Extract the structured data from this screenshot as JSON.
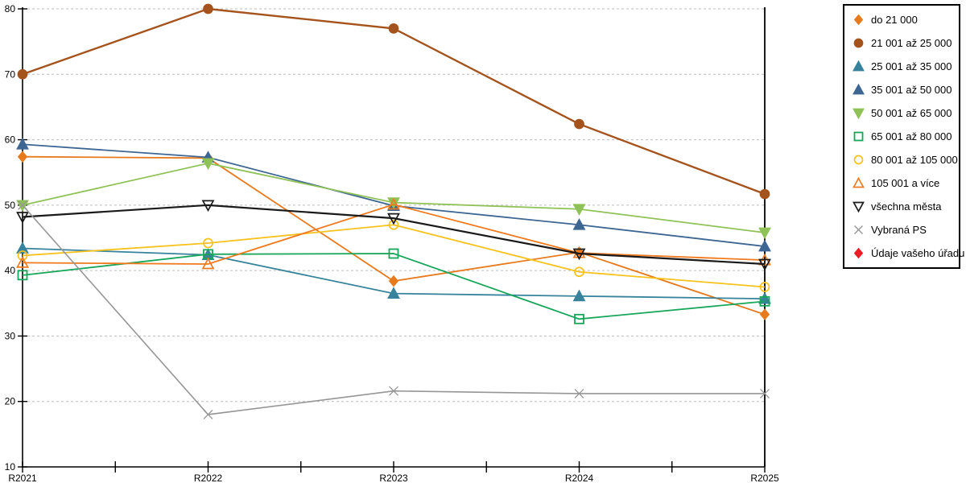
{
  "chart_data": {
    "type": "line",
    "title": "",
    "xlabel": "",
    "ylabel": "",
    "categories": [
      "R2021",
      "R2022",
      "R2023",
      "R2024",
      "R2025"
    ],
    "y_tick_labels": [
      "10",
      "20",
      "30",
      "40",
      "50",
      "60",
      "70",
      "80"
    ],
    "ylim": [
      10,
      80
    ],
    "y_tick_interval": 10,
    "grid": "horizontal-dashed",
    "legend_position": "top-right",
    "series": [
      {
        "name": "do 21 000",
        "marker": "diamond",
        "filled": true,
        "color": "#E87A1E",
        "line_width": 1.8,
        "values": [
          57.4,
          57.2,
          38.4,
          42.8,
          33.3
        ]
      },
      {
        "name": "21 001 až 25 000",
        "marker": "circle",
        "filled": true,
        "color": "#A5531C",
        "line_width": 2.4,
        "values": [
          70.0,
          80.0,
          77.0,
          62.4,
          51.7
        ]
      },
      {
        "name": "25 001 až 35 000",
        "marker": "triangle-up",
        "filled": true,
        "color": "#36839B",
        "line_width": 1.8,
        "values": [
          43.4,
          42.4,
          36.5,
          36.1,
          35.7
        ]
      },
      {
        "name": "35 001 až 50 000",
        "marker": "triangle-up",
        "filled": true,
        "color": "#3E6693",
        "line_width": 1.8,
        "values": [
          59.3,
          57.3,
          49.9,
          47.0,
          43.7
        ]
      },
      {
        "name": "50 001 až 65 000",
        "marker": "triangle-down",
        "filled": true,
        "color": "#8FC256",
        "line_width": 1.8,
        "values": [
          50.0,
          56.4,
          50.4,
          49.4,
          45.8
        ]
      },
      {
        "name": "65 001 až 80 000",
        "marker": "square",
        "filled": false,
        "color": "#18A65A",
        "line_width": 1.8,
        "values": [
          39.3,
          42.5,
          42.6,
          32.6,
          35.3
        ]
      },
      {
        "name": "80 001 až 105 000",
        "marker": "circle",
        "filled": false,
        "color": "#F7C21C",
        "line_width": 1.8,
        "values": [
          42.3,
          44.2,
          47.0,
          39.8,
          37.5
        ]
      },
      {
        "name": "105 001 a více",
        "marker": "triangle-up",
        "filled": false,
        "color": "#F07A1E",
        "line_width": 1.8,
        "values": [
          41.2,
          41.0,
          50.1,
          42.7,
          41.6
        ]
      },
      {
        "name": "všechna města",
        "marker": "triangle-down",
        "filled": false,
        "color": "#1A1A1A",
        "line_width": 2.2,
        "values": [
          48.2,
          50.0,
          48.0,
          42.6,
          41.0
        ]
      },
      {
        "name": "Vybraná PS",
        "marker": "x",
        "filled": false,
        "color": "#969696",
        "line_width": 1.6,
        "values": [
          50.0,
          18.0,
          21.6,
          21.2,
          21.2
        ]
      },
      {
        "name": "Údaje vašeho úřadu",
        "marker": "diamond",
        "filled": true,
        "color": "#EC1C24",
        "line_width": 1.8,
        "values": []
      }
    ]
  },
  "colors": {
    "axis": "#000000",
    "gridline": "#bdbdbd",
    "background": "#ffffff",
    "legend_border": "#000000"
  }
}
